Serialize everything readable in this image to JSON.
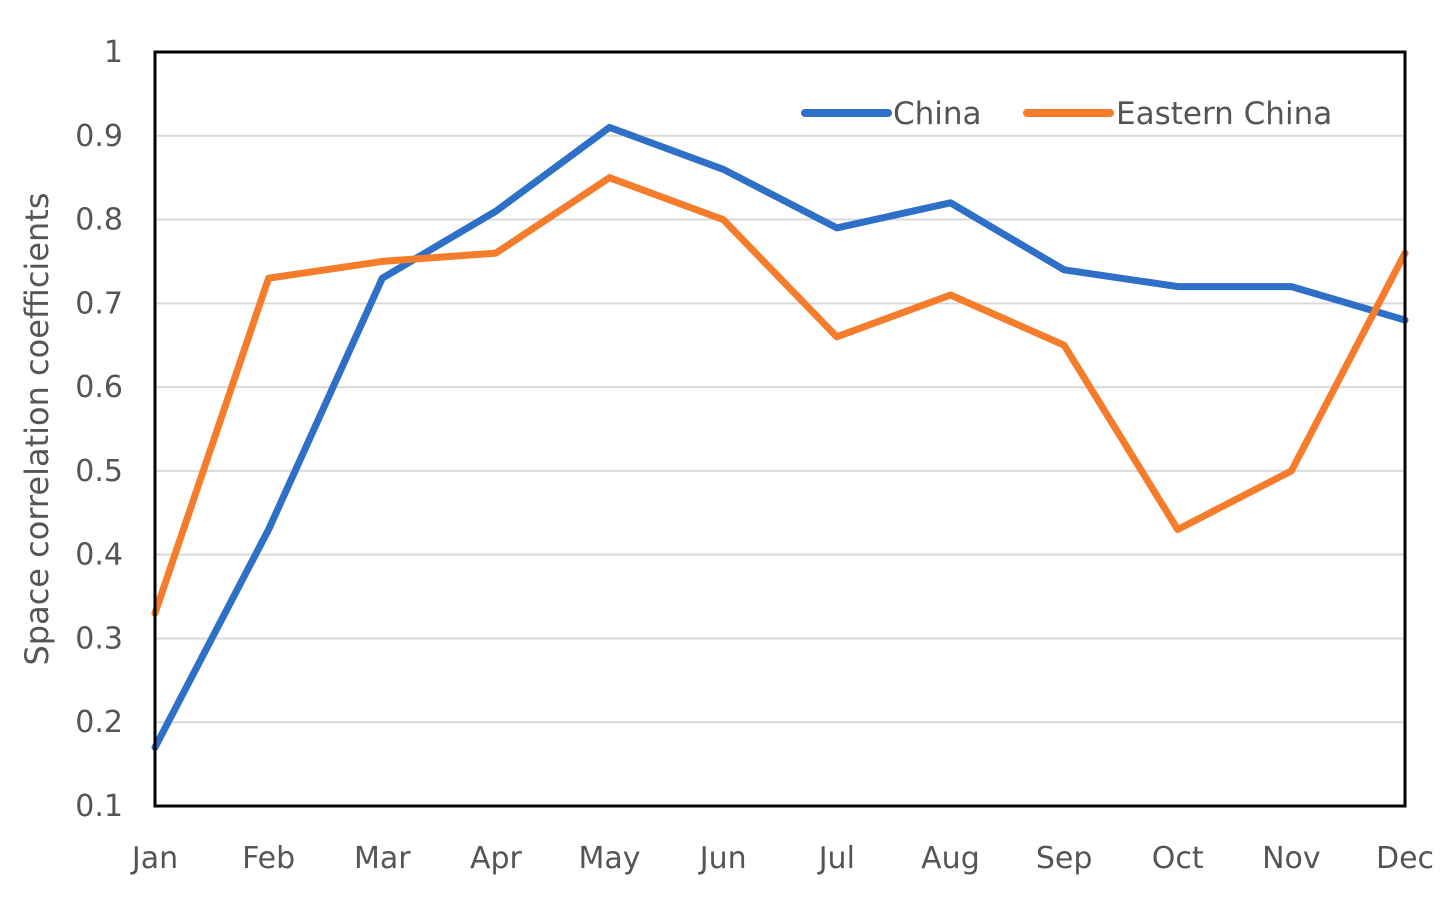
{
  "chart_data": {
    "type": "line",
    "ylabel": "Space correlation coefficients",
    "ylim": [
      0.1,
      1
    ],
    "yticks": [
      "0.1",
      "0.2",
      "0.3",
      "0.4",
      "0.5",
      "0.6",
      "0.7",
      "0.8",
      "0.9",
      "1"
    ],
    "grid": true,
    "legend_position": "top-right",
    "categories": [
      "Jan",
      "Feb",
      "Mar",
      "Apr",
      "May",
      "Jun",
      "Jul",
      "Aug",
      "Sep",
      "Oct",
      "Nov",
      "Dec"
    ],
    "series": [
      {
        "name": "China",
        "color": "#2e6fc7",
        "values": [
          0.17,
          0.43,
          0.73,
          0.81,
          0.91,
          0.86,
          0.79,
          0.82,
          0.74,
          0.72,
          0.72,
          0.68
        ]
      },
      {
        "name": "Eastern China",
        "color": "#f57c2a",
        "values": [
          0.33,
          0.73,
          0.75,
          0.76,
          0.85,
          0.8,
          0.66,
          0.71,
          0.65,
          0.43,
          0.5,
          0.76
        ]
      }
    ]
  }
}
